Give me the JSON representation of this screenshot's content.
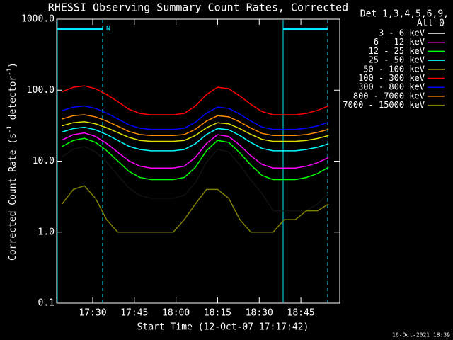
{
  "chart_data": {
    "type": "line",
    "title": "RHESSI Observing Summary Count Rates, Corrected",
    "xlabel": "Start Time (12-Oct-07 17:17:42)",
    "ylabel": [
      "Corrected Count Rate (s",
      "-1",
      " detector",
      "-1",
      ")"
    ],
    "legend_header": [
      "Det 1,3,4,5,6,9,",
      "Att 0"
    ],
    "annotation": "N",
    "footer": "16-Oct-2021 18:39",
    "log_y": true,
    "legend": "right",
    "xlim": [
      1037,
      1139
    ],
    "xticks": [
      {
        "value": 1050,
        "label": "17:30"
      },
      {
        "value": 1065,
        "label": "17:45"
      },
      {
        "value": 1080,
        "label": "18:00"
      },
      {
        "value": 1095,
        "label": "18:15"
      },
      {
        "value": 1110,
        "label": "18:30"
      },
      {
        "value": 1125,
        "label": "18:45"
      }
    ],
    "ylim": [
      0.1,
      1000
    ],
    "yticks": [
      0.1,
      {
        "value": 1,
        "label": "1.0"
      },
      {
        "value": 10,
        "label": "10.0"
      },
      {
        "value": 100,
        "label": "100.0"
      },
      {
        "value": 1000,
        "label": "1000.0"
      }
    ],
    "x": [
      1039,
      1043,
      1047,
      1051,
      1055,
      1059,
      1063,
      1067,
      1071,
      1075,
      1079,
      1083,
      1087,
      1091,
      1095,
      1099,
      1103,
      1107,
      1111,
      1115,
      1119,
      1123,
      1127,
      1131,
      1135
    ],
    "series": [
      {
        "name": "3 - 6 keV",
        "color": "#000000",
        "values": [
          11.5,
          14.7,
          16,
          13.5,
          9.7,
          6.4,
          4.2,
          3.3,
          3,
          3,
          3,
          3.3,
          5,
          9.7,
          14.7,
          13.5,
          8.9,
          5.4,
          3.5,
          2,
          2,
          2,
          2,
          2.5,
          3.5
        ]
      },
      {
        "name": "6 - 12 keV",
        "color": "#ff00ff",
        "values": [
          19.9,
          23.6,
          25,
          22.3,
          17.8,
          13.4,
          10.1,
          8.5,
          8,
          8,
          8,
          8.5,
          11.3,
          17.8,
          23.6,
          22.3,
          16.8,
          11.9,
          9,
          8,
          8,
          8,
          8.5,
          9.5,
          11.3
        ]
      },
      {
        "name": "12 - 25 keV",
        "color": "#00ff00",
        "values": [
          16.1,
          19.6,
          21,
          18.4,
          14.1,
          10.1,
          7.2,
          5.9,
          5.5,
          5.5,
          5.5,
          5.9,
          8.2,
          14.1,
          19.6,
          18.4,
          13.1,
          8.8,
          6.3,
          5.5,
          5.5,
          5.5,
          5.9,
          6.7,
          8.2
        ]
      },
      {
        "name": "25 - 50 keV",
        "color": "#00ffff",
        "values": [
          25.8,
          28.8,
          30,
          27.7,
          23.8,
          19.7,
          16.2,
          14.6,
          14,
          14,
          14,
          14.6,
          17.6,
          23.8,
          28.8,
          27.7,
          23,
          18.3,
          15.1,
          14,
          14,
          14,
          14.6,
          15.7,
          17.6
        ]
      },
      {
        "name": "50 - 100 keV",
        "color": "#e0e000",
        "values": [
          31.5,
          34.8,
          36,
          33.6,
          29.6,
          25.3,
          21.7,
          19.6,
          19,
          19,
          19,
          19.6,
          23,
          29.6,
          34.8,
          33.6,
          28.7,
          23.8,
          20.3,
          19,
          19,
          19,
          19.6,
          20.9,
          23
        ]
      },
      {
        "name": "100 - 300 keV",
        "color": "#ff0000",
        "values": [
          95,
          110,
          115,
          105,
          87,
          69,
          54,
          47,
          45,
          45,
          45,
          47,
          60,
          87,
          110,
          105,
          83,
          63,
          50,
          45,
          45,
          45,
          47,
          52,
          60
        ]
      },
      {
        "name": "300 - 800 keV",
        "color": "#0000ff",
        "values": [
          51.5,
          57.7,
          60,
          55.4,
          47.6,
          39.5,
          32.5,
          29.1,
          28,
          28,
          28,
          29.1,
          35.3,
          47.6,
          57.7,
          55.4,
          45.9,
          36.7,
          30.2,
          28,
          28,
          28,
          29.1,
          31.4,
          35.3
        ]
      },
      {
        "name": "800 - 7000 keV",
        "color": "#ff8c00",
        "values": [
          39.3,
          43.7,
          45,
          42.1,
          36.8,
          31.1,
          26.2,
          23.7,
          23,
          23,
          23,
          23.7,
          28.1,
          36.8,
          43.7,
          42.1,
          35.7,
          29.2,
          24.6,
          23,
          23,
          23,
          23.7,
          25.5,
          28.1
        ]
      },
      {
        "name": "7000 - 15000 keV",
        "color": "#808000",
        "values": [
          2.5,
          4,
          4.5,
          3,
          1.5,
          1,
          1,
          1,
          1,
          1,
          1,
          1.5,
          2.5,
          4,
          4,
          3,
          1.5,
          1,
          1,
          1,
          1.5,
          1.5,
          2,
          2,
          2.5
        ]
      }
    ]
  }
}
